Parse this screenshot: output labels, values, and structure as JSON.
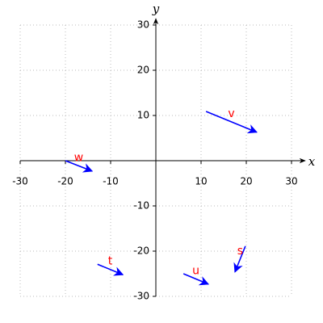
{
  "chart_data": {
    "type": "vector",
    "x_label": "x",
    "y_label": "y",
    "xlim": [
      -30,
      30
    ],
    "ylim": [
      -30,
      30
    ],
    "xticks": [
      -30,
      -20,
      -10,
      10,
      20,
      30
    ],
    "yticks": [
      -30,
      -20,
      -10,
      10,
      20,
      30
    ],
    "grid": true,
    "label_color": "#ff0000",
    "series": [
      {
        "name": "v",
        "color": "#0000ff",
        "x": [
          11.1,
          22.3
        ],
        "y": [
          10.9,
          6.3
        ]
      },
      {
        "name": "w",
        "color": "#0000ff",
        "x": [
          -20,
          -14.1
        ],
        "y": [
          0,
          -2.3
        ]
      },
      {
        "name": "t",
        "color": "#0000ff",
        "x": [
          -12.9,
          -7.3
        ],
        "y": [
          -22.9,
          -25.2
        ]
      },
      {
        "name": "u",
        "color": "#0000ff",
        "x": [
          6.1,
          11.6
        ],
        "y": [
          -25,
          -27.3
        ]
      },
      {
        "name": "s",
        "color": "#0000ff",
        "x": [
          19.8,
          17.5
        ],
        "y": [
          -18.9,
          -24.6
        ]
      }
    ]
  }
}
